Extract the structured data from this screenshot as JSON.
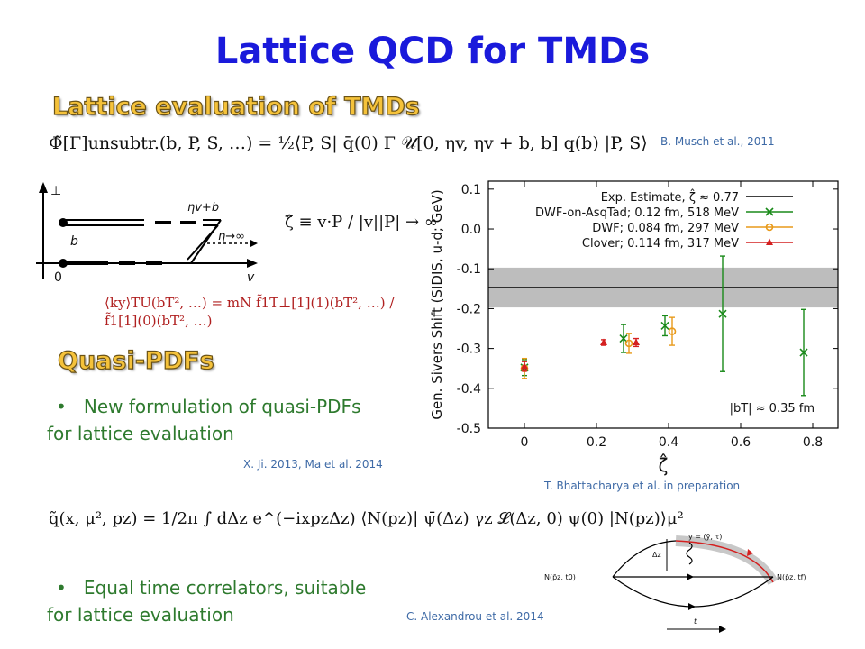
{
  "title": "Lattice QCD for TMDs",
  "sections": {
    "lattice_tmds": "Lattice evaluation of TMDs",
    "quasi_pdfs": "Quasi-PDFs"
  },
  "formulas": {
    "phi_unsubtracted": "Φ̃[Γ]unsubtr.(b, P, S, …) = ½⟨P, S| q̄(0) Γ 𝒰[0, ηv, ηv + b, b] q(b) |P, S⟩",
    "zeta_def": "ζ̂ ≡ v·P / |v||P| → ∞",
    "ky_ratio": "⟨ky⟩TU(bT², …) = mN f̃1T⊥[1](1)(bT², …) / f̃1[1](0)(bT², …)",
    "quasi_pdf": "q̃(x, μ², pz) = 1/2π ∫ dΔz e^(−ixpzΔz) ⟨N(pz)| ψ̄(Δz) γz 𝓛(Δz, 0) ψ(0) |N(pz)⟩μ²"
  },
  "diagram_labels": {
    "perp": "⊥",
    "eta_v_b": "ηv+b",
    "eta_inf": "η→∞",
    "b": "b",
    "zero": "0",
    "v": "v"
  },
  "bullets": {
    "b1_line1": "New formulation of quasi-PDFs",
    "b1_line2": "for lattice evaluation",
    "b2_line1": "Equal time correlators, suitable",
    "b2_line2": "for lattice evaluation",
    "marker": "•"
  },
  "citations": {
    "musch": "B. Musch et al., 2011",
    "ji": "X. Ji. 2013,  Ma et al. 2014",
    "bhattacharya": "T. Bhattacharya et al. in preparation",
    "alexandrou": "C. Alexandrou et al. 2014"
  },
  "feynman_labels": {
    "top": "y = (ȳ, τ)",
    "dz": "Δz",
    "left": "N(p̄z, t0)",
    "right": "N(p̄z, tf)",
    "t": "t"
  },
  "chart_data": {
    "type": "scatter",
    "xlabel": "ζ̂",
    "ylabel": "Gen. Sivers Shift (SIDIS, u-d; GeV)",
    "xlim": [
      -0.1,
      0.87
    ],
    "ylim": [
      -0.5,
      0.12
    ],
    "xticks": [
      "0",
      "0.2",
      "0.4",
      "0.6",
      "0.8"
    ],
    "xtick_values": [
      0,
      0.2,
      0.4,
      0.6,
      0.8
    ],
    "yticks": [
      "0.1",
      "0.0",
      "-0.1",
      "-0.2",
      "-0.3",
      "-0.4",
      "-0.5"
    ],
    "ytick_values": [
      0.1,
      0.0,
      -0.1,
      -0.2,
      -0.3,
      -0.4,
      -0.5
    ],
    "annotation": "|bT| ≈ 0.35 fm",
    "band": {
      "label": "Exp. Estimate, ζ̂ ≈ 0.77",
      "center": -0.147,
      "low": -0.197,
      "high": -0.097,
      "color": "#000000",
      "band_color": "#bdbdbd"
    },
    "series": [
      {
        "name": "DWF-on-AsqTad; 0.12 fm, 518 MeV",
        "color": "#1a8a1a",
        "marker": "x",
        "points": [
          {
            "x": 0,
            "y": -0.348,
            "err": 0.02
          },
          {
            "x": 0.275,
            "y": -0.275,
            "err": 0.035
          },
          {
            "x": 0.39,
            "y": -0.243,
            "err": 0.025
          },
          {
            "x": 0.55,
            "y": -0.213,
            "err": 0.145
          },
          {
            "x": 0.775,
            "y": -0.31,
            "err": 0.108
          }
        ]
      },
      {
        "name": "DWF; 0.084 fm, 297 MeV",
        "color": "#e89a1a",
        "marker": "o",
        "points": [
          {
            "x": 0,
            "y": -0.35,
            "err": 0.025
          },
          {
            "x": 0.29,
            "y": -0.287,
            "err": 0.025
          },
          {
            "x": 0.41,
            "y": -0.257,
            "err": 0.035
          }
        ]
      },
      {
        "name": "Clover; 0.114 fm, 317 MeV",
        "color": "#d42020",
        "marker": "triangle",
        "points": [
          {
            "x": 0,
            "y": -0.345,
            "err": 0.012
          },
          {
            "x": 0.22,
            "y": -0.285,
            "err": 0.007
          },
          {
            "x": 0.31,
            "y": -0.285,
            "err": 0.01
          }
        ]
      }
    ]
  }
}
